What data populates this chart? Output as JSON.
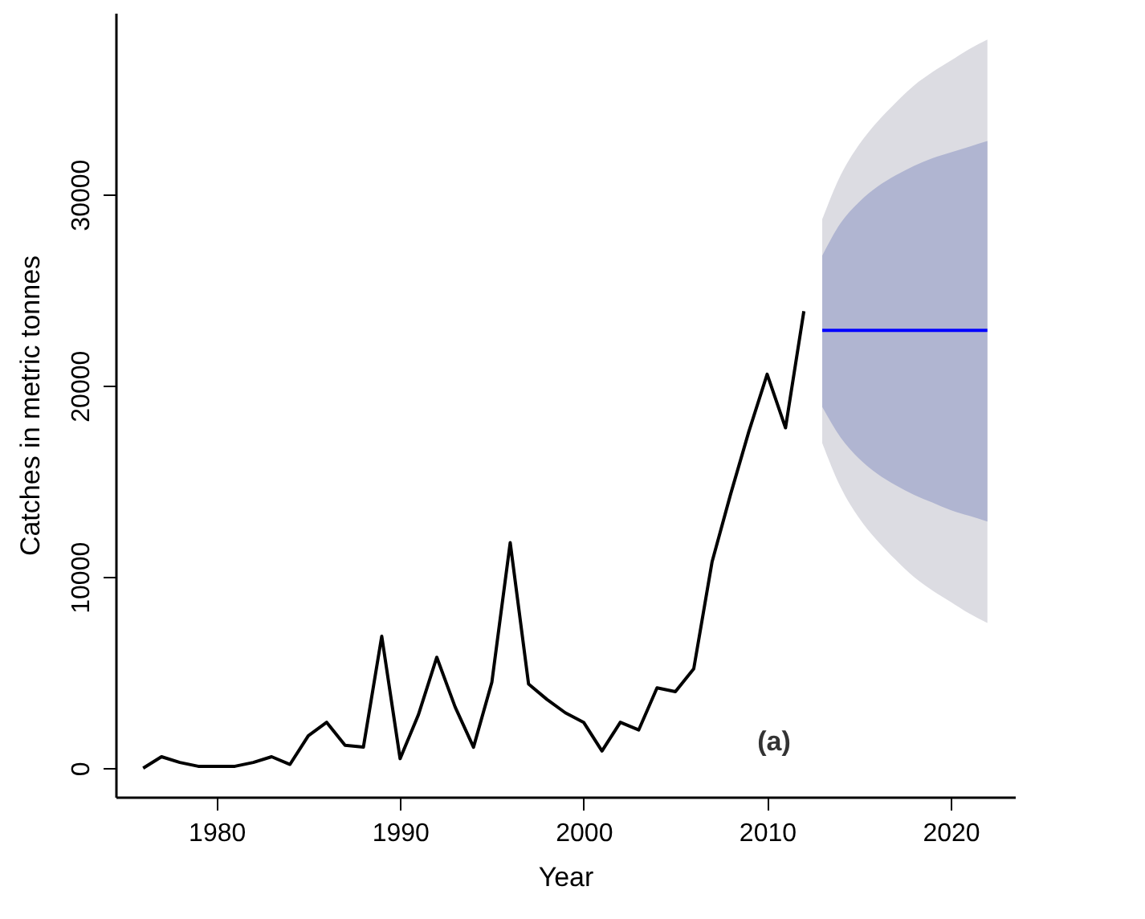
{
  "chart_data": {
    "type": "line",
    "xlabel": "Year",
    "ylabel": "Catches in metric tonnes",
    "xlim": [
      1974.5,
      2023.5
    ],
    "ylim": [
      -1500,
      39500
    ],
    "xticks": [
      1980,
      1990,
      2000,
      2010,
      2020
    ],
    "yticks": [
      0,
      10000,
      20000,
      30000
    ],
    "grid": false,
    "annotations": [
      "(a)"
    ],
    "series": [
      {
        "color": "#dcdce2",
        "x": [
          2013,
          2014,
          2015,
          2016,
          2017,
          2018,
          2019,
          2020,
          2021,
          2022
        ],
        "values": [
          null,
          null,
          null,
          null,
          null,
          null,
          null,
          null,
          null,
          null
        ],
        "upper": [
          28700,
          31000,
          32600,
          33800,
          34800,
          35700,
          36400,
          37000,
          37600,
          38100
        ],
        "lower": [
          17000,
          14700,
          13100,
          11900,
          10900,
          10000,
          9300,
          8700,
          8100,
          7600
        ]
      },
      {
        "color": "#b0b5d1",
        "x": [
          2013,
          2014,
          2015,
          2016,
          2017,
          2018,
          2019,
          2020,
          2021,
          2022
        ],
        "values": [
          null,
          null,
          null,
          null,
          null,
          null,
          null,
          null,
          null,
          null
        ],
        "upper": [
          26800,
          28500,
          29600,
          30400,
          31000,
          31500,
          31900,
          32200,
          32500,
          32800
        ],
        "lower": [
          18900,
          17300,
          16200,
          15400,
          14800,
          14300,
          13900,
          13500,
          13200,
          12900
        ]
      },
      {
        "color": "#000000",
        "x": [
          1976,
          1977,
          1978,
          1979,
          1980,
          1981,
          1982,
          1983,
          1984,
          1985,
          1986,
          1987,
          1988,
          1989,
          1990,
          1991,
          1992,
          1993,
          1994,
          1995,
          1996,
          1997,
          1998,
          1999,
          2000,
          2001,
          2002,
          2003,
          2004,
          2005,
          2006,
          2007,
          2008,
          2009,
          2010,
          2011,
          2012
        ],
        "values": [
          0,
          600,
          300,
          100,
          100,
          100,
          300,
          600,
          200,
          1700,
          2400,
          1200,
          1100,
          6900,
          500,
          2800,
          5800,
          3200,
          1100,
          4500,
          11800,
          4400,
          3600,
          2900,
          2400,
          900,
          2400,
          2000,
          4200,
          4000,
          5200,
          10800,
          14300,
          17600,
          20600,
          17800,
          23900
        ]
      },
      {
        "color": "#0000ff",
        "x": [
          2013,
          2014,
          2015,
          2016,
          2017,
          2018,
          2019,
          2020,
          2021,
          2022
        ],
        "values": [
          22900,
          22900,
          22900,
          22900,
          22900,
          22900,
          22900,
          22900,
          22900,
          22900
        ]
      }
    ]
  }
}
